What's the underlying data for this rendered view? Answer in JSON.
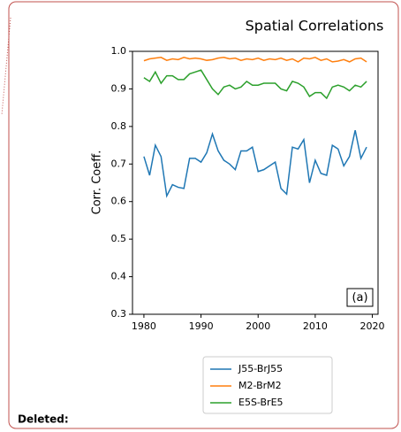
{
  "document": {
    "label": "Deleted:"
  },
  "chart_data": {
    "type": "line",
    "title": "Spatial Correlations",
    "ylabel": "Corr. Coeff.",
    "annotation": "(a)",
    "x": [
      1980,
      1981,
      1982,
      1983,
      1984,
      1985,
      1986,
      1987,
      1988,
      1989,
      1990,
      1991,
      1992,
      1993,
      1994,
      1995,
      1996,
      1997,
      1998,
      1999,
      2000,
      2001,
      2002,
      2003,
      2004,
      2005,
      2006,
      2007,
      2008,
      2009,
      2010,
      2011,
      2012,
      2013,
      2014,
      2015,
      2016,
      2017,
      2018,
      2019
    ],
    "series": [
      {
        "name": "J55-BrJ55",
        "color": "#1f77b4",
        "values": [
          0.72,
          0.67,
          0.75,
          0.72,
          0.615,
          0.645,
          0.638,
          0.635,
          0.715,
          0.715,
          0.705,
          0.73,
          0.78,
          0.735,
          0.71,
          0.7,
          0.685,
          0.735,
          0.735,
          0.745,
          0.68,
          0.685,
          0.695,
          0.705,
          0.635,
          0.62,
          0.745,
          0.74,
          0.765,
          0.65,
          0.71,
          0.675,
          0.67,
          0.75,
          0.74,
          0.695,
          0.72,
          0.79,
          0.715,
          0.745
        ]
      },
      {
        "name": "M2-BrM2",
        "color": "#ff7f0e",
        "values": [
          0.975,
          0.98,
          0.982,
          0.984,
          0.976,
          0.98,
          0.978,
          0.984,
          0.98,
          0.982,
          0.98,
          0.976,
          0.978,
          0.982,
          0.984,
          0.98,
          0.982,
          0.976,
          0.98,
          0.978,
          0.982,
          0.976,
          0.98,
          0.978,
          0.982,
          0.976,
          0.98,
          0.972,
          0.982,
          0.98,
          0.984,
          0.976,
          0.98,
          0.972,
          0.974,
          0.978,
          0.972,
          0.98,
          0.982,
          0.972
        ]
      },
      {
        "name": "E5S-BrE5",
        "color": "#2ca02c",
        "values": [
          0.93,
          0.92,
          0.945,
          0.915,
          0.935,
          0.935,
          0.925,
          0.925,
          0.94,
          0.945,
          0.95,
          0.925,
          0.9,
          0.885,
          0.905,
          0.91,
          0.9,
          0.905,
          0.92,
          0.91,
          0.91,
          0.915,
          0.915,
          0.915,
          0.9,
          0.895,
          0.92,
          0.915,
          0.905,
          0.88,
          0.89,
          0.89,
          0.875,
          0.905,
          0.91,
          0.905,
          0.895,
          0.91,
          0.905,
          0.92
        ]
      }
    ],
    "xlim": [
      1978,
      2021
    ],
    "xticks": [
      1980,
      1990,
      2000,
      2010,
      2020
    ],
    "ylim": [
      0.3,
      1.0
    ],
    "yticks": [
      0.3,
      0.4,
      0.5,
      0.6,
      0.7,
      0.8,
      0.9,
      {
        "value": 1.0,
        "label": "1.0"
      }
    ],
    "legend": "bottom"
  }
}
